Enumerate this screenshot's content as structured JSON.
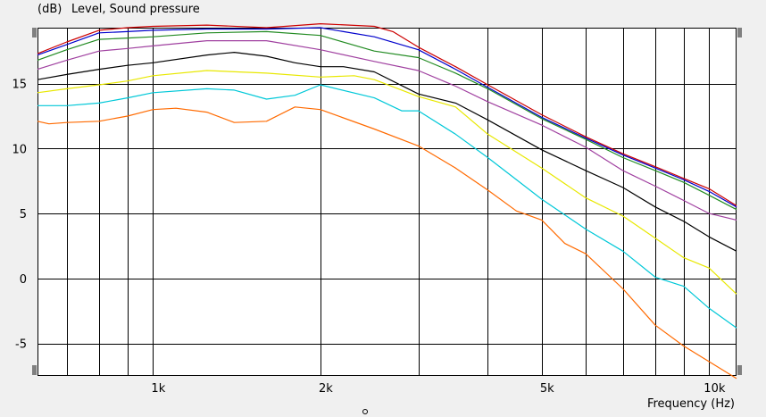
{
  "header": {
    "unit": "(dB)",
    "title": "Level, Sound pressure"
  },
  "footer": {
    "xlabel": "Frequency  (Hz)"
  },
  "colors": {
    "background": "#f0f0f0",
    "plot_bg": "#ffffff",
    "grid": "#000000",
    "handle": "#808080"
  },
  "chart_data": {
    "type": "line",
    "x_scale": "log",
    "xlim": [
      620,
      11200
    ],
    "ylim": [
      -7.5,
      19.3
    ],
    "ylabel": "Level, Sound pressure (dB)",
    "xlabel": "Frequency  (Hz)",
    "grid": true,
    "y_ticks": [
      15,
      10,
      5,
      0,
      -5
    ],
    "y_tick_labels": [
      "15",
      "10",
      "5",
      "0",
      "-5"
    ],
    "x_ticks": [
      1000,
      2000,
      5000,
      10000
    ],
    "x_tick_labels": [
      "1k",
      "2k",
      "5k",
      "10k"
    ],
    "x_minor_grid": [
      700,
      800,
      900,
      1000,
      2000,
      3000,
      4000,
      5000,
      6000,
      7000,
      8000,
      9000,
      10000
    ],
    "series": [
      {
        "color": "#cc0000",
        "x": [
          620,
          700,
          800,
          900,
          1000,
          1250,
          1600,
          2000,
          2500,
          2700,
          3000,
          3500,
          4000,
          5000,
          6000,
          7000,
          8000,
          9000,
          10000,
          11200
        ],
        "y": [
          17.3,
          18.2,
          19.1,
          19.3,
          19.4,
          19.5,
          19.3,
          19.6,
          19.4,
          19.0,
          17.8,
          16.3,
          14.9,
          12.6,
          10.9,
          9.6,
          8.6,
          7.7,
          6.9,
          5.6
        ]
      },
      {
        "color": "#0000cc",
        "x": [
          620,
          700,
          800,
          900,
          1000,
          1250,
          1600,
          2000,
          2200,
          2500,
          3000,
          3500,
          4000,
          5000,
          6000,
          7000,
          8000,
          9000,
          10000,
          11200
        ],
        "y": [
          17.2,
          18.0,
          18.9,
          19.0,
          19.1,
          19.2,
          19.2,
          19.3,
          19.0,
          18.6,
          17.6,
          16.1,
          14.7,
          12.4,
          10.8,
          9.5,
          8.5,
          7.6,
          6.7,
          5.5
        ]
      },
      {
        "color": "#228b22",
        "x": [
          620,
          700,
          800,
          900,
          1000,
          1250,
          1600,
          2000,
          2500,
          3000,
          3500,
          4000,
          5000,
          6000,
          7000,
          8000,
          9000,
          10000,
          11200
        ],
        "y": [
          16.8,
          17.6,
          18.4,
          18.5,
          18.6,
          18.9,
          19.0,
          18.7,
          17.5,
          17.0,
          15.8,
          14.6,
          12.3,
          10.7,
          9.3,
          8.3,
          7.4,
          6.4,
          5.3
        ]
      },
      {
        "color": "#a040a0",
        "x": [
          620,
          700,
          800,
          900,
          1000,
          1250,
          1600,
          2000,
          2500,
          3000,
          3500,
          4000,
          5000,
          6000,
          7000,
          8000,
          9000,
          10000,
          11200
        ],
        "y": [
          16.1,
          16.8,
          17.5,
          17.7,
          17.9,
          18.3,
          18.3,
          17.6,
          16.7,
          16.0,
          14.8,
          13.6,
          11.8,
          10.1,
          8.3,
          7.1,
          6.0,
          5.0,
          4.5
        ]
      },
      {
        "color": "#000000",
        "x": [
          620,
          700,
          800,
          900,
          1000,
          1250,
          1400,
          1600,
          1800,
          2000,
          2200,
          2500,
          3000,
          3500,
          4000,
          5000,
          6000,
          7000,
          8000,
          9000,
          10000,
          11200
        ],
        "y": [
          15.3,
          15.7,
          16.1,
          16.4,
          16.6,
          17.2,
          17.4,
          17.1,
          16.6,
          16.3,
          16.3,
          15.9,
          14.2,
          13.5,
          12.2,
          9.9,
          8.3,
          7.0,
          5.5,
          4.4,
          3.2,
          2.1
        ]
      },
      {
        "color": "#e8e800",
        "x": [
          620,
          700,
          800,
          900,
          1000,
          1250,
          1600,
          2000,
          2300,
          2500,
          3000,
          3500,
          4000,
          5000,
          6000,
          7000,
          8000,
          9000,
          10000,
          11200
        ],
        "y": [
          14.3,
          14.6,
          14.9,
          15.2,
          15.6,
          16.0,
          15.8,
          15.5,
          15.6,
          15.3,
          14.0,
          13.2,
          11.1,
          8.5,
          6.2,
          4.8,
          3.1,
          1.6,
          0.8,
          -1.2
        ]
      },
      {
        "color": "#00c8d8",
        "x": [
          620,
          700,
          800,
          900,
          1000,
          1250,
          1400,
          1600,
          1800,
          2000,
          2500,
          2800,
          3000,
          3500,
          4000,
          5000,
          5500,
          6000,
          7000,
          8000,
          9000,
          10000,
          11200
        ],
        "y": [
          13.3,
          13.3,
          13.5,
          13.9,
          14.3,
          14.6,
          14.5,
          13.8,
          14.1,
          14.9,
          13.9,
          12.9,
          12.9,
          11.1,
          9.3,
          6.1,
          4.9,
          3.8,
          2.1,
          0.1,
          -0.6,
          -2.3,
          -3.8
        ]
      },
      {
        "color": "#ff6a00",
        "x": [
          620,
          650,
          700,
          800,
          900,
          1000,
          1100,
          1250,
          1400,
          1600,
          1800,
          2000,
          2500,
          3000,
          3500,
          4000,
          4500,
          5000,
          5500,
          6000,
          7000,
          8000,
          9000,
          10000,
          11200
        ],
        "y": [
          12.1,
          11.9,
          12.0,
          12.1,
          12.5,
          13.0,
          13.1,
          12.8,
          12.0,
          12.1,
          13.2,
          13.0,
          11.5,
          10.2,
          8.5,
          6.8,
          5.2,
          4.5,
          2.7,
          1.9,
          -0.8,
          -3.6,
          -5.2,
          -6.4,
          -7.7
        ]
      }
    ]
  }
}
